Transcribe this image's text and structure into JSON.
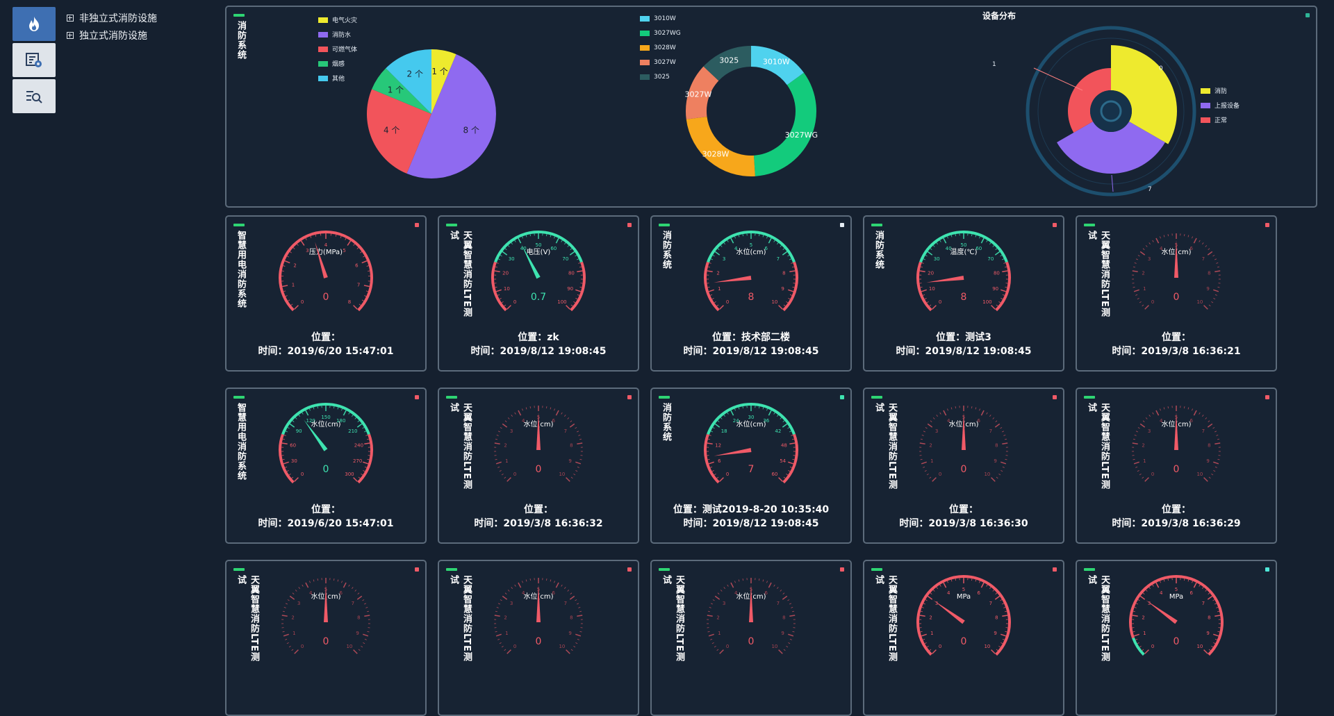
{
  "sidebar": {
    "icons": [
      {
        "name": "fire-icon",
        "active": true
      },
      {
        "name": "monitor-chart-icon",
        "active": false
      },
      {
        "name": "search-list-icon",
        "active": false
      }
    ],
    "tree": [
      {
        "label": "非独立式消防设施"
      },
      {
        "label": "独立式消防设施"
      }
    ]
  },
  "overview": {
    "system_title": "消防系统",
    "pie1": {
      "legend": [
        "电气火灾",
        "消防水",
        "可燃气体",
        "烟感",
        "其他"
      ],
      "slices": [
        {
          "label": "1 个",
          "value": 1,
          "color": "#eeea2e"
        },
        {
          "label": "8 个",
          "value": 8,
          "color": "#8f6af0"
        },
        {
          "label": "4 个",
          "value": 4,
          "color": "#f2545b"
        },
        {
          "label": "1 个",
          "value": 1,
          "color": "#27c879"
        },
        {
          "label": "2 个",
          "value": 2,
          "color": "#45c9ee"
        }
      ]
    },
    "donut": {
      "legend": [
        "3010W",
        "3027WG",
        "3028W",
        "3027W",
        "3025"
      ],
      "slices": [
        {
          "label": "3010W",
          "value": 15,
          "color": "#4fd2ee"
        },
        {
          "label": "3027WG",
          "value": 34,
          "color": "#13cb7c"
        },
        {
          "label": "3028W",
          "value": 24,
          "color": "#f7a71b"
        },
        {
          "label": "3027W",
          "value": 14,
          "color": "#ee8060"
        },
        {
          "label": "3025",
          "value": 13,
          "color": "#2c5c60"
        }
      ]
    },
    "rose": {
      "title": "设备分布",
      "legend": [
        "消防",
        "上报设备",
        "正常"
      ],
      "labels": [
        "0",
        "7",
        "1"
      ],
      "colors": [
        "#eeea2e",
        "#8f6af0",
        "#f2545b"
      ]
    }
  },
  "cards": [
    {
      "title": "智慧用电消防系统",
      "status": "red",
      "name": "压力(MPa)",
      "value": "0",
      "theme": "red",
      "min": 0,
      "max": 8,
      "needle": 3.5,
      "ticks": [
        "0",
        "1",
        "2",
        "3",
        "4",
        "5",
        "6",
        "7",
        "8"
      ],
      "loc_label": "位置：",
      "location": "",
      "time_label": "时间：",
      "time": "2019/6/20 15:47:01"
    },
    {
      "title": "天翼智慧消防LTE测试",
      "status": "red",
      "name": "电压(V)",
      "value": "0.7",
      "theme": "green",
      "min": 0,
      "max": 100,
      "needle": 40,
      "ticks": [
        "0",
        "10",
        "20",
        "30",
        "40",
        "50",
        "60",
        "70",
        "80",
        "90",
        "100"
      ],
      "loc_label": "位置：",
      "location": "zk",
      "time_label": "时间：",
      "time": "2019/8/12 19:08:45"
    },
    {
      "title": "消防系统",
      "status": "white",
      "name": "水位(cm)",
      "value": "8",
      "theme": "green",
      "min": 0,
      "max": 10,
      "needle": 1.4,
      "ticks": [
        "0",
        "1",
        "2",
        "3",
        "4",
        "5",
        "6",
        "7",
        "8",
        "9",
        "10"
      ],
      "loc_label": "位置：",
      "location": "技术部二楼",
      "time_label": "时间：",
      "time": "2019/8/12 19:08:45"
    },
    {
      "title": "消防系统",
      "status": "red",
      "name": "温度(℃)",
      "value": "8",
      "theme": "green",
      "min": 0,
      "max": 100,
      "needle": 14,
      "ticks": [
        "0",
        "10",
        "20",
        "30",
        "40",
        "50",
        "60",
        "70",
        "80",
        "90",
        "100"
      ],
      "loc_label": "位置：",
      "location": "测试3",
      "time_label": "时间：",
      "time": "2019/8/12 19:08:45"
    },
    {
      "title": "天翼智慧消防LTE测试",
      "status": "red",
      "name": "水位(cm)",
      "value": "0",
      "theme": "dark",
      "min": 0,
      "max": 10,
      "needle": 5,
      "ticks": [
        "0",
        "1",
        "2",
        "3",
        "4",
        "5",
        "6",
        "7",
        "8",
        "9",
        "10"
      ],
      "loc_label": "位置：",
      "location": "",
      "time_label": "时间：",
      "time": "2019/3/8 16:36:21"
    },
    {
      "title": "智慧用电消防系统",
      "status": "red",
      "name": "水位(cm)",
      "value": "0",
      "theme": "green",
      "min": 0,
      "max": 300,
      "needle": 110,
      "ticks": [
        "0",
        "30",
        "60",
        "90",
        "120",
        "150",
        "180",
        "210",
        "240",
        "270",
        "300"
      ],
      "loc_label": "位置：",
      "location": "",
      "time_label": "时间：",
      "time": "2019/6/20 15:47:01"
    },
    {
      "title": "天翼智慧消防LTE测试",
      "status": "red",
      "name": "水位(cm)",
      "value": "0",
      "theme": "dark",
      "min": 0,
      "max": 10,
      "needle": 5,
      "ticks": [
        "0",
        "1",
        "2",
        "3",
        "4",
        "5",
        "6",
        "7",
        "8",
        "9",
        "10"
      ],
      "loc_label": "位置：",
      "location": "",
      "time_label": "时间：",
      "time": "2019/3/8 16:36:32"
    },
    {
      "title": "消防系统",
      "status": "green",
      "name": "水位(cm)",
      "value": "7",
      "theme": "green",
      "min": 0,
      "max": 60,
      "needle": 8,
      "ticks": [
        "0",
        "6",
        "12",
        "18",
        "24",
        "30",
        "36",
        "42",
        "48",
        "54",
        "60"
      ],
      "loc_label": "位置：",
      "location": "测试2019-8-20 10:35:40",
      "time_label": "时间：",
      "time": "2019/8/12 19:08:45"
    },
    {
      "title": "天翼智慧消防LTE测试",
      "status": "red",
      "name": "水位(cm)",
      "value": "0",
      "theme": "dark",
      "min": 0,
      "max": 10,
      "needle": 5,
      "ticks": [
        "0",
        "1",
        "2",
        "3",
        "4",
        "5",
        "6",
        "7",
        "8",
        "9",
        "10"
      ],
      "loc_label": "位置：",
      "location": "",
      "time_label": "时间：",
      "time": "2019/3/8 16:36:30"
    },
    {
      "title": "天翼智慧消防LTE测试",
      "status": "red",
      "name": "水位(cm)",
      "value": "0",
      "theme": "dark",
      "min": 0,
      "max": 10,
      "needle": 5,
      "ticks": [
        "0",
        "1",
        "2",
        "3",
        "4",
        "5",
        "6",
        "7",
        "8",
        "9",
        "10"
      ],
      "loc_label": "位置：",
      "location": "",
      "time_label": "时间：",
      "time": "2019/3/8 16:36:29"
    },
    {
      "title": "天翼智慧消防LTE测试",
      "status": "red",
      "name": "水位(cm)",
      "value": "0",
      "theme": "dark",
      "min": 0,
      "max": 10,
      "needle": 5,
      "ticks": [
        "0",
        "1",
        "2",
        "3",
        "4",
        "5",
        "6",
        "7",
        "8",
        "9",
        "10"
      ],
      "loc_label": "",
      "location": "",
      "time_label": "",
      "time": ""
    },
    {
      "title": "天翼智慧消防LTE测试",
      "status": "red",
      "name": "水位(cm)",
      "value": "0",
      "theme": "dark",
      "min": 0,
      "max": 10,
      "needle": 5,
      "ticks": [
        "0",
        "1",
        "2",
        "3",
        "4",
        "5",
        "6",
        "7",
        "8",
        "9",
        "10"
      ],
      "loc_label": "",
      "location": "",
      "time_label": "",
      "time": ""
    },
    {
      "title": "天翼智慧消防LTE测试",
      "status": "red",
      "name": "水位(cm)",
      "value": "0",
      "theme": "dark",
      "min": 0,
      "max": 10,
      "needle": 5,
      "ticks": [
        "0",
        "1",
        "2",
        "3",
        "4",
        "5",
        "6",
        "7",
        "8",
        "9",
        "10"
      ],
      "loc_label": "",
      "location": "",
      "time_label": "",
      "time": ""
    },
    {
      "title": "天翼智慧消防LTE测试",
      "status": "red",
      "name": "MPa",
      "value": "0",
      "theme": "red",
      "min": 0,
      "max": 10,
      "needle": 3,
      "ticks": [
        "0",
        "1",
        "2",
        "3",
        "4",
        "5",
        "6",
        "7",
        "8",
        "9",
        "10"
      ],
      "loc_label": "",
      "location": "",
      "time_label": "",
      "time": ""
    },
    {
      "title": "天翼智慧消防LTE测试",
      "status": "cyan",
      "name": "MPa",
      "value": "0",
      "theme": "red-green",
      "min": 0,
      "max": 10,
      "needle": 3,
      "ticks": [
        "0",
        "1",
        "2",
        "3",
        "4",
        "5",
        "6",
        "7",
        "8",
        "9",
        "10"
      ],
      "loc_label": "",
      "location": "",
      "time_label": "",
      "time": ""
    }
  ],
  "colors": {
    "red": "#f05a67",
    "green": "#3ee3b0",
    "white": "#e6edf5",
    "cyan": "#4ee6d8"
  }
}
